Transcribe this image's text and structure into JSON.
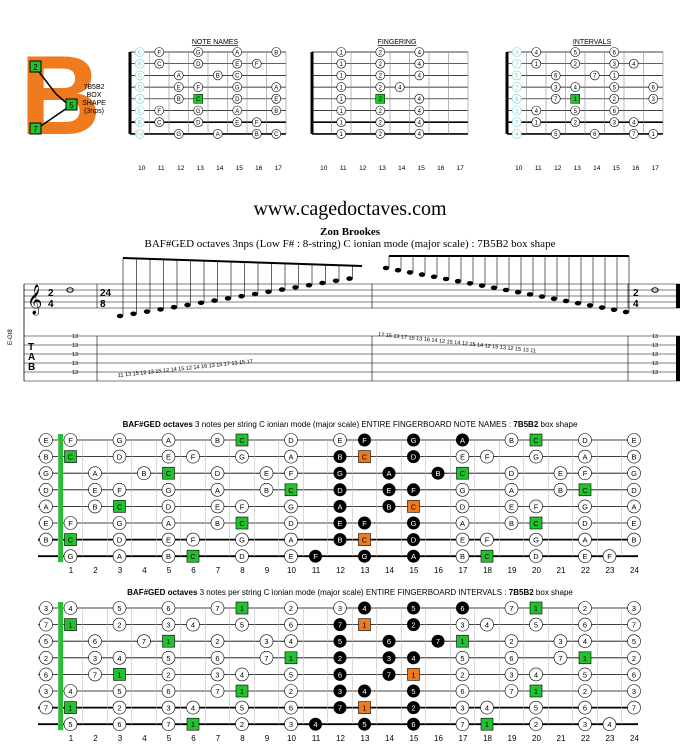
{
  "logo": {
    "letter": "B",
    "box_label": "7B5B2\nBOX\nSHAPE\n(3nps)",
    "dots": [
      "2",
      "5",
      "7"
    ]
  },
  "mini": {
    "titles": [
      "NOTE NAMES",
      "FINGERING",
      "INTERVALS"
    ],
    "frets": [
      "10",
      "11",
      "12",
      "13",
      "14",
      "15",
      "16",
      "17"
    ],
    "notes": [
      [
        "E",
        "F",
        "",
        "G",
        "",
        "A",
        "",
        "B"
      ],
      [
        "B",
        "C",
        "",
        "D",
        "",
        "E",
        "F",
        ""
      ],
      [
        "G",
        "",
        "A",
        "",
        "B",
        "C",
        "",
        ""
      ],
      [
        "D",
        "",
        "E",
        "F",
        "",
        "G",
        "",
        "A"
      ],
      [
        "A",
        "",
        "B",
        "C",
        "",
        "D",
        "",
        "E"
      ],
      [
        "E",
        "F",
        "",
        "G",
        "",
        "A",
        "",
        "B"
      ],
      [
        "B",
        "C",
        "",
        "D",
        "",
        "E",
        "F",
        ""
      ],
      [
        "F#",
        "",
        "G",
        "",
        "A",
        "",
        "B",
        "C"
      ]
    ],
    "fingering": [
      [
        "",
        "1",
        "",
        "2",
        "",
        "4",
        "",
        ""
      ],
      [
        "",
        "1",
        "",
        "2",
        "",
        "4",
        "",
        ""
      ],
      [
        "",
        "1",
        "",
        "2",
        "",
        "4",
        "",
        ""
      ],
      [
        "",
        "1",
        "",
        "2",
        "4",
        "",
        "",
        ""
      ],
      [
        "",
        "1",
        "",
        "2",
        "",
        "4",
        "",
        ""
      ],
      [
        "",
        "1",
        "",
        "2",
        "",
        "4",
        "",
        ""
      ],
      [
        "",
        "1",
        "",
        "2",
        "",
        "4",
        "",
        ""
      ],
      [
        "",
        "1",
        "",
        "2",
        "",
        "4",
        "",
        ""
      ]
    ],
    "intervals": [
      [
        "3",
        "4",
        "",
        "5",
        "",
        "6",
        "",
        ""
      ],
      [
        "7",
        "1",
        "",
        "2",
        "",
        "3",
        "4",
        ""
      ],
      [
        "5",
        "",
        "6",
        "",
        "7",
        "1",
        "",
        ""
      ],
      [
        "2",
        "",
        "3",
        "4",
        "",
        "5",
        "",
        "6"
      ],
      [
        "6",
        "",
        "7",
        "1",
        "",
        "2",
        "",
        "3"
      ],
      [
        "3",
        "4",
        "",
        "5",
        "",
        "6",
        "",
        ""
      ],
      [
        "7",
        "1",
        "",
        "2",
        "",
        "3",
        "4",
        ""
      ],
      [
        "4",
        "",
        "5",
        "",
        "6",
        "",
        "7",
        "1"
      ]
    ],
    "green": [
      [
        1,
        2
      ],
      [
        4,
        3
      ],
      [
        6,
        2
      ]
    ]
  },
  "header": {
    "site": "www.cagedoctaves.com",
    "author": "Zon Brookes",
    "subtitle": "BAF#GED octaves 3nps (Low F# : 8-string) C ionian mode (major scale) : 7B5B2 box shape"
  },
  "staff": {
    "side_label": "E-Gt8",
    "tab_letters": [
      "T",
      "A",
      "B"
    ],
    "tab_up": "11 13 15   12 13 15   12 14 15   12 14 16   13 15 17   13 15 17",
    "tab_down": "17 15 13   17 15 13   16 14 12   15 14 12   15 14 12   15 13 12   15 13 11",
    "open_note": "13"
  },
  "board1": {
    "title_bold": "BAF#GED octaves",
    "title_rest": "3 notes per string C ionian mode (major scale) ENTIRE FINGERBOARD NOTE NAMES :",
    "shape_bold": "7B5B2",
    "shape_rest": "box shape",
    "strings": [
      [
        "E",
        "F",
        "",
        "G",
        "",
        "A",
        "",
        "B",
        "C",
        "",
        "D",
        "",
        "E",
        "F",
        "",
        "G",
        "",
        "A",
        "",
        "B",
        "C",
        "",
        "D",
        "",
        "E"
      ],
      [
        "B",
        "C",
        "",
        "D",
        "",
        "E",
        "F",
        "",
        "G",
        "",
        "A",
        "",
        "B",
        "C",
        "",
        "D",
        "",
        "E",
        "F",
        "",
        "G",
        "",
        "A",
        "",
        "B"
      ],
      [
        "G",
        "",
        "A",
        "",
        "B",
        "C",
        "",
        "D",
        "",
        "E",
        "F",
        "",
        "G",
        "",
        "A",
        "",
        "B",
        "C",
        "",
        "D",
        "",
        "E",
        "F",
        "",
        "G"
      ],
      [
        "D",
        "",
        "E",
        "F",
        "",
        "G",
        "",
        "A",
        "",
        "B",
        "C",
        "",
        "D",
        "",
        "E",
        "F",
        "",
        "G",
        "",
        "A",
        "",
        "B",
        "C",
        "",
        "D"
      ],
      [
        "A",
        "",
        "B",
        "C",
        "",
        "D",
        "",
        "E",
        "F",
        "",
        "G",
        "",
        "A",
        "",
        "B",
        "C",
        "",
        "D",
        "",
        "E",
        "F",
        "",
        "G",
        "",
        "A"
      ],
      [
        "E",
        "F",
        "",
        "G",
        "",
        "A",
        "",
        "B",
        "C",
        "",
        "D",
        "",
        "E",
        "F",
        "",
        "G",
        "",
        "A",
        "",
        "B",
        "C",
        "",
        "D",
        "",
        "E"
      ],
      [
        "B",
        "C",
        "",
        "D",
        "",
        "E",
        "F",
        "",
        "G",
        "",
        "A",
        "",
        "B",
        "C",
        "",
        "D",
        "",
        "E",
        "F",
        "",
        "G",
        "",
        "A",
        "",
        "B"
      ],
      [
        "",
        "G",
        "",
        "A",
        "",
        "B",
        "C",
        "",
        "D",
        "",
        "E",
        "F",
        "",
        "G",
        "",
        "A",
        "",
        "B",
        "C",
        "",
        "D",
        "",
        "E",
        "F",
        ""
      ]
    ]
  },
  "board2": {
    "title_bold": "BAF#GED octaves",
    "title_rest": "3 notes per string C ionian mode (major scale) ENTIRE FINGERBOARD INTERVALS :",
    "shape_bold": "7B5B2",
    "shape_rest": "box shape",
    "strings": [
      [
        "3",
        "4",
        "",
        "5",
        "",
        "6",
        "",
        "7",
        "1",
        "",
        "2",
        "",
        "3",
        "4",
        "",
        "5",
        "",
        "6",
        "",
        "7",
        "1",
        "",
        "2",
        "",
        "3"
      ],
      [
        "7",
        "1",
        "",
        "2",
        "",
        "3",
        "4",
        "",
        "5",
        "",
        "6",
        "",
        "7",
        "1",
        "",
        "2",
        "",
        "3",
        "4",
        "",
        "5",
        "",
        "6",
        "",
        "7"
      ],
      [
        "5",
        "",
        "6",
        "",
        "7",
        "1",
        "",
        "2",
        "",
        "3",
        "4",
        "",
        "5",
        "",
        "6",
        "",
        "7",
        "1",
        "",
        "2",
        "",
        "3",
        "4",
        "",
        "5"
      ],
      [
        "2",
        "",
        "3",
        "4",
        "",
        "5",
        "",
        "6",
        "",
        "7",
        "1",
        "",
        "2",
        "",
        "3",
        "4",
        "",
        "5",
        "",
        "6",
        "",
        "7",
        "1",
        "",
        "2"
      ],
      [
        "6",
        "",
        "7",
        "1",
        "",
        "2",
        "",
        "3",
        "4",
        "",
        "5",
        "",
        "6",
        "",
        "7",
        "1",
        "",
        "2",
        "",
        "3",
        "4",
        "",
        "5",
        "",
        "6"
      ],
      [
        "3",
        "4",
        "",
        "5",
        "",
        "6",
        "",
        "7",
        "1",
        "",
        "2",
        "",
        "3",
        "4",
        "",
        "5",
        "",
        "6",
        "",
        "7",
        "1",
        "",
        "2",
        "",
        "3"
      ],
      [
        "7",
        "1",
        "",
        "2",
        "",
        "3",
        "4",
        "",
        "5",
        "",
        "6",
        "",
        "7",
        "1",
        "",
        "2",
        "",
        "3",
        "4",
        "",
        "5",
        "",
        "6",
        "",
        "7"
      ],
      [
        "",
        "5",
        "",
        "6",
        "",
        "7",
        "1",
        "",
        "2",
        "",
        "3",
        "4",
        "",
        "5",
        "",
        "6",
        "",
        "7",
        "1",
        "",
        "2",
        "",
        "3",
        "4",
        ""
      ]
    ]
  },
  "fret_numbers": [
    "1",
    "2",
    "3",
    "4",
    "5",
    "6",
    "7",
    "8",
    "9",
    "10",
    "11",
    "12",
    "13",
    "14",
    "15",
    "16",
    "17",
    "18",
    "19",
    "20",
    "21",
    "22",
    "23",
    "24"
  ],
  "board_green": [
    [
      0,
      8
    ],
    [
      0,
      20
    ],
    [
      1,
      1
    ],
    [
      1,
      13
    ],
    [
      2,
      5
    ],
    [
      2,
      17
    ],
    [
      3,
      10
    ],
    [
      3,
      22
    ],
    [
      4,
      3
    ],
    [
      4,
      15
    ],
    [
      5,
      8
    ],
    [
      5,
      20
    ],
    [
      6,
      1
    ],
    [
      6,
      13
    ],
    [
      7,
      6
    ],
    [
      7,
      18
    ]
  ],
  "board_orange": [
    [
      1,
      13
    ],
    [
      4,
      15
    ],
    [
      6,
      13
    ]
  ],
  "board_black": [
    [
      0,
      13
    ],
    [
      0,
      15
    ],
    [
      0,
      17
    ],
    [
      1,
      12
    ],
    [
      1,
      15
    ],
    [
      2,
      12
    ],
    [
      2,
      14
    ],
    [
      2,
      16
    ],
    [
      3,
      12
    ],
    [
      3,
      14
    ],
    [
      3,
      15
    ],
    [
      4,
      12
    ],
    [
      4,
      14
    ],
    [
      5,
      12
    ],
    [
      5,
      13
    ],
    [
      5,
      15
    ],
    [
      6,
      12
    ],
    [
      6,
      15
    ],
    [
      7,
      11
    ],
    [
      7,
      13
    ],
    [
      7,
      15
    ]
  ]
}
